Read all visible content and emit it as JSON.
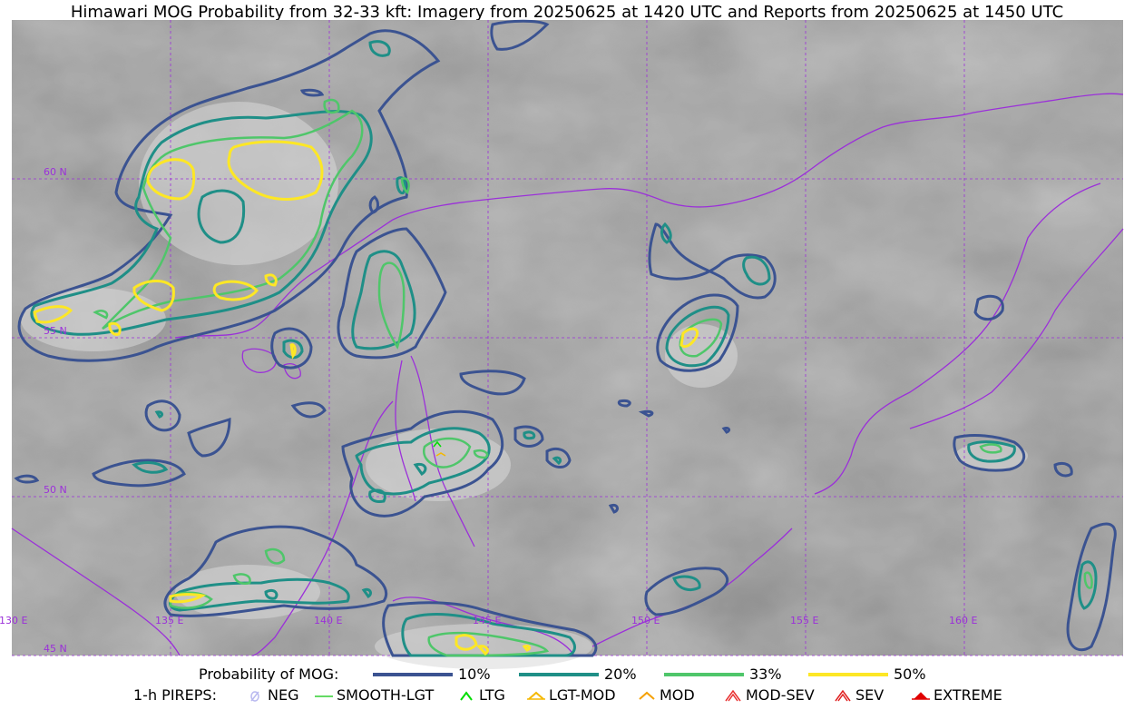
{
  "title": "Himawari MOG Probability from 32-33 kft: Imagery from 20250625 at 1420 UTC and Reports from 20250625 at 1450 UTC",
  "map": {
    "lat_labels": [
      "60 N",
      "55 N",
      "50 N",
      "45 N"
    ],
    "lon_labels": [
      "130 E",
      "135 E",
      "140 E",
      "145 E",
      "150 E",
      "155 E",
      "160 E"
    ],
    "colors": {
      "grid": "#9b30d9",
      "coast": "#9b30d9",
      "p10": "#3b5391",
      "p20": "#1f8f87",
      "p33": "#4fc66a",
      "p50": "#fde725"
    }
  },
  "legend": {
    "prob_title": "Probability of MOG:",
    "prob_items": [
      {
        "label": "10%",
        "color": "#3b5391"
      },
      {
        "label": "20%",
        "color": "#1f8f87"
      },
      {
        "label": "33%",
        "color": "#4fc66a"
      },
      {
        "label": "50%",
        "color": "#fde725"
      }
    ],
    "pirep_title": "1-h PIREPS:",
    "pirep_items": [
      {
        "label": "NEG",
        "icon": "neg-icon",
        "color": "#b9b9f0"
      },
      {
        "label": "SMOOTH-LGT",
        "icon": "smooth-lgt-icon",
        "color": "#32cd32"
      },
      {
        "label": "LTG",
        "icon": "ltg-icon",
        "color": "#00dd00"
      },
      {
        "label": "LGT-MOD",
        "icon": "lgt-mod-icon",
        "color": "#f5b800"
      },
      {
        "label": "MOD",
        "icon": "mod-icon",
        "color": "#f5a000"
      },
      {
        "label": "MOD-SEV",
        "icon": "mod-sev-icon",
        "color": "#e83030"
      },
      {
        "label": "SEV",
        "icon": "sev-icon",
        "color": "#e02020"
      },
      {
        "label": "EXTREME",
        "icon": "extreme-icon",
        "color": "#e00000"
      }
    ]
  }
}
